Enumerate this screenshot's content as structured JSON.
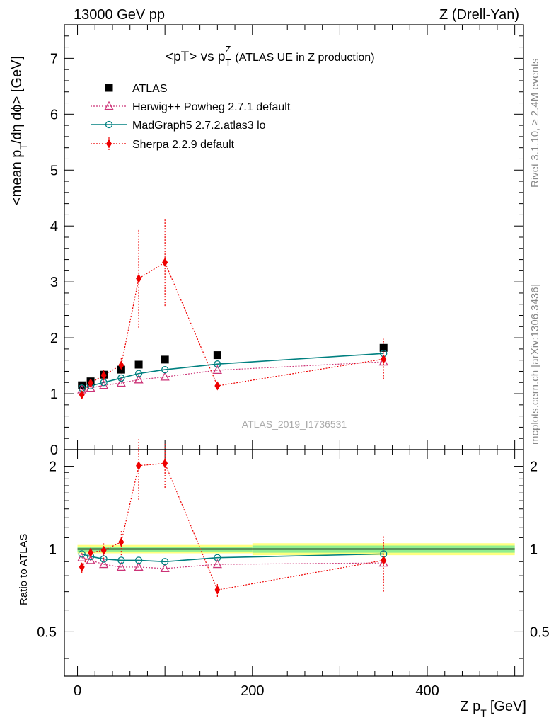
{
  "header": {
    "left": "13000 GeV pp",
    "right": "Z (Drell-Yan)"
  },
  "side_labels": {
    "rivet": "Rivet 3.1.10, ≥ 2.4M events",
    "mcplots": "mcplots.cern.ch [arXiv:1306.3436]"
  },
  "watermark": "ATLAS_2019_I1736531",
  "chart_data": {
    "type": "scatter",
    "title": {
      "main": "<pT> vs p",
      "sub": "T",
      "sup": "Z",
      "rest": "(ATLAS UE in Z production)"
    },
    "xlabel": {
      "main": "Z p",
      "sub": "T",
      "rest": "[GeV]"
    },
    "ylabel": {
      "main": "<mean p",
      "sub": "T",
      "rest": "/dη dϕ> [GeV]"
    },
    "ratio_ylabel": "Ratio to ATLAS",
    "xlim": [
      -15,
      510
    ],
    "ylim": [
      0,
      7.6
    ],
    "ratio_ylim": [
      0.345,
      2.3
    ],
    "x_ticks": [
      0,
      200,
      400
    ],
    "y_ticks": [
      0,
      1,
      2,
      3,
      4,
      5,
      6,
      7
    ],
    "ratio_ticks": [
      0.5,
      1,
      2
    ],
    "colors": {
      "atlas": "#000000",
      "herwig": "#cc3377",
      "madgraph": "#008080",
      "sherpa": "#ee0000",
      "band_inner": "#90ee90",
      "band_outer": "#ffff80"
    },
    "legend_position": "top-left",
    "series": [
      {
        "name": "ATLAS",
        "x": [
          5,
          15,
          30,
          50,
          70,
          100,
          160,
          350
        ],
        "y": [
          1.15,
          1.22,
          1.34,
          1.43,
          1.52,
          1.61,
          1.69,
          1.82
        ]
      },
      {
        "name": "Herwig++ Powheg 2.7.1 default",
        "x": [
          5,
          15,
          30,
          50,
          70,
          100,
          160,
          350
        ],
        "y": [
          1.07,
          1.1,
          1.15,
          1.19,
          1.25,
          1.3,
          1.42,
          1.57
        ],
        "ratio": [
          0.93,
          0.91,
          0.88,
          0.86,
          0.86,
          0.85,
          0.88,
          0.89
        ]
      },
      {
        "name": "MadGraph5 2.7.2.atlas3 lo",
        "x": [
          5,
          15,
          30,
          50,
          70,
          100,
          160,
          350
        ],
        "y": [
          1.1,
          1.14,
          1.2,
          1.28,
          1.36,
          1.43,
          1.53,
          1.72
        ],
        "ratio": [
          0.96,
          0.94,
          0.92,
          0.91,
          0.91,
          0.9,
          0.93,
          0.96
        ]
      },
      {
        "name": "Sherpa 2.2.9 default",
        "x": [
          5,
          15,
          30,
          50,
          70,
          100,
          160,
          350
        ],
        "y": [
          0.98,
          1.19,
          1.33,
          1.51,
          3.06,
          3.35,
          1.14,
          1.62
        ],
        "yerr": [
          0.05,
          0.05,
          0.09,
          0.15,
          0.88,
          0.78,
          0.06,
          0.36
        ],
        "ratio": [
          0.86,
          0.97,
          0.99,
          1.06,
          2.01,
          2.05,
          0.71,
          0.91
        ],
        "ratio_err": [
          0.04,
          0.04,
          0.07,
          0.11,
          0.5,
          0.38,
          0.04,
          0.21
        ]
      }
    ],
    "band_bins": [
      {
        "x0": 0,
        "x1": 200,
        "inner": 0.02,
        "outer": 0.035
      },
      {
        "x0": 200,
        "x1": 500,
        "inner": 0.03,
        "outer": 0.05
      }
    ]
  }
}
